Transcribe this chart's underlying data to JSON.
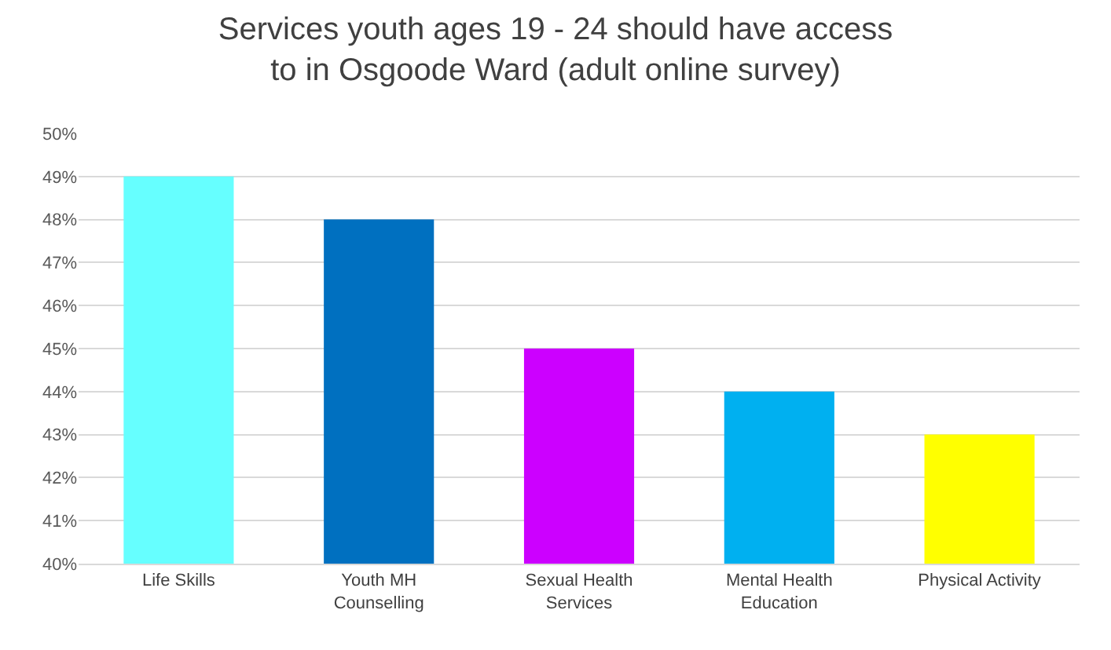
{
  "chart_data": {
    "type": "bar",
    "title": "Services youth ages 19 - 24 should have access to in Osgoode Ward (adult online survey)",
    "categories": [
      "Life Skills",
      "Youth MH Counselling",
      "Sexual Health Services",
      "Mental Health Education",
      "Physical Activity"
    ],
    "values": [
      49,
      48,
      45,
      44,
      43
    ],
    "colors": [
      "#66ffff",
      "#0070c0",
      "#cc00ff",
      "#00b0f0",
      "#ffff00"
    ],
    "ylim": [
      40,
      50
    ],
    "yticks": [
      {
        "value": 40,
        "label": "40%"
      },
      {
        "value": 41,
        "label": "41%"
      },
      {
        "value": 42,
        "label": "42%"
      },
      {
        "value": 43,
        "label": "43%"
      },
      {
        "value": 44,
        "label": "44%"
      },
      {
        "value": 45,
        "label": "45%"
      },
      {
        "value": 46,
        "label": "46%"
      },
      {
        "value": 47,
        "label": "47%"
      },
      {
        "value": 48,
        "label": "48%"
      },
      {
        "value": 49,
        "label": "49%"
      },
      {
        "value": 50,
        "label": "50%"
      }
    ],
    "grid": "y",
    "legend": false
  }
}
